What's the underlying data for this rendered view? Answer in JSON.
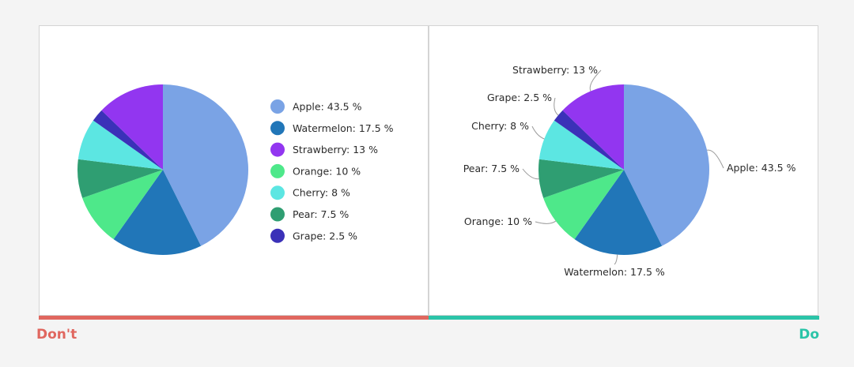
{
  "chart_data": [
    {
      "type": "pie",
      "categories": [
        "Apple",
        "Watermelon",
        "Strawberry",
        "Orange",
        "Cherry",
        "Pear",
        "Grape"
      ],
      "values": [
        43.5,
        17.5,
        13,
        10,
        8,
        7.5,
        2.5
      ],
      "labels": [
        "Apple: 43.5 %",
        "Watermelon: 17.5 %",
        "Strawberry: 13 %",
        "Orange: 10 %",
        "Cherry: 8 %",
        "Pear: 7.5 %",
        "Grape: 2.5 %"
      ],
      "colors": [
        "#7aa3e5",
        "#2176b8",
        "#9236f0",
        "#4ee88a",
        "#5ce6e2",
        "#2f9e72",
        "#3b31b8"
      ],
      "legend": "right",
      "slice_order_clockwise_from_top": [
        "Apple",
        "Watermelon",
        "Orange",
        "Pear",
        "Cherry",
        "Grape",
        "Strawberry"
      ]
    },
    {
      "type": "pie",
      "categories": [
        "Apple",
        "Watermelon",
        "Strawberry",
        "Orange",
        "Cherry",
        "Pear",
        "Grape"
      ],
      "values": [
        43.5,
        17.5,
        13,
        10,
        8,
        7.5,
        2.5
      ],
      "labels": [
        "Apple: 43.5 %",
        "Watermelon: 17.5 %",
        "Strawberry: 13 %",
        "Orange: 10 %",
        "Cherry: 8 %",
        "Pear: 7.5 %",
        "Grape: 2.5 %"
      ],
      "colors": [
        "#7aa3e5",
        "#2176b8",
        "#9236f0",
        "#4ee88a",
        "#5ce6e2",
        "#2f9e72",
        "#3b31b8"
      ],
      "legend": "none",
      "labelling": "callouts",
      "slice_order_clockwise_from_top": [
        "Apple",
        "Watermelon",
        "Orange",
        "Pear",
        "Cherry",
        "Grape",
        "Strawberry"
      ]
    }
  ],
  "verdicts": {
    "bad": "Don't",
    "good": "Do"
  },
  "colors": {
    "bad": "#e0675f",
    "good": "#2bc4a8",
    "leader_line": "#9a9a9a"
  }
}
